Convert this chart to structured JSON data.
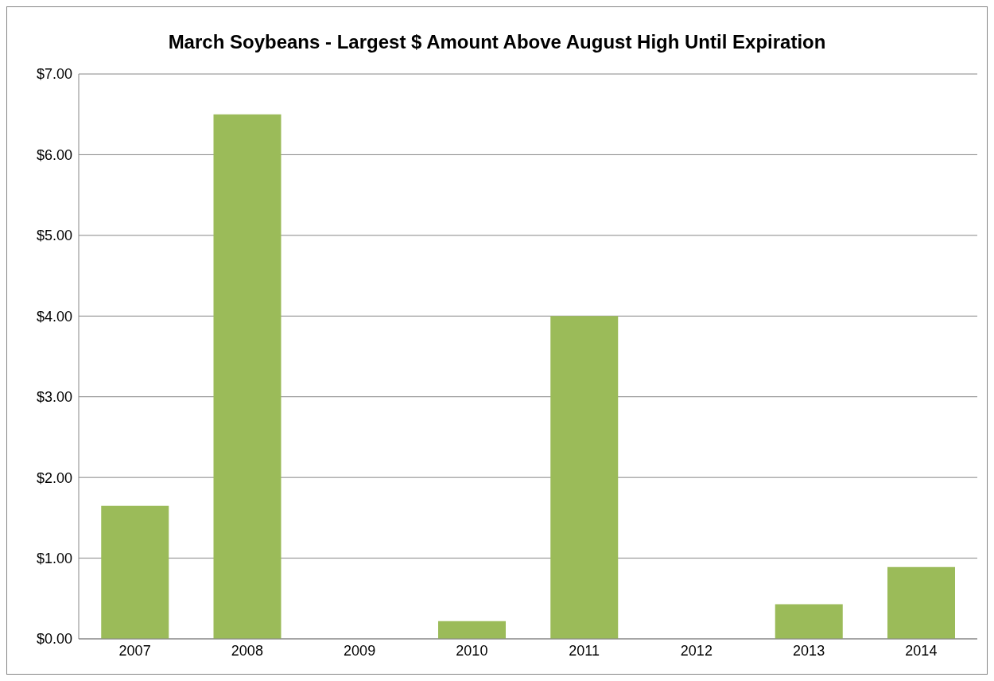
{
  "chart_data": {
    "type": "bar",
    "title": "March Soybeans - Largest $ Amount Above August High Until Expiration",
    "categories": [
      "2007",
      "2008",
      "2009",
      "2010",
      "2011",
      "2012",
      "2013",
      "2014"
    ],
    "values": [
      1.65,
      6.5,
      0,
      0.22,
      4.0,
      0,
      0.43,
      0.89
    ],
    "color": "#9bbb59",
    "ylim": [
      0,
      7
    ],
    "yticks": [
      {
        "value": 0,
        "label": "$0.00"
      },
      {
        "value": 1,
        "label": "$1.00"
      },
      {
        "value": 2,
        "label": "$2.00"
      },
      {
        "value": 3,
        "label": "$3.00"
      },
      {
        "value": 4,
        "label": "$4.00"
      },
      {
        "value": 5,
        "label": "$5.00"
      },
      {
        "value": 6,
        "label": "$6.00"
      },
      {
        "value": 7,
        "label": "$7.00"
      }
    ],
    "grid": "y"
  }
}
